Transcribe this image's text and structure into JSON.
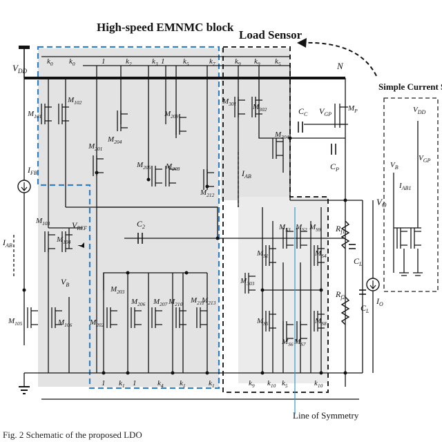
{
  "titles": {
    "emnmc_block": "High-speed EMNMC block",
    "load_sensor": "Load Sensor",
    "simple_current_sensor": "Simple Current Sensor",
    "line_of_symmetry": "Line of Symmetry",
    "caption": "Fig. 2 Schematic of the proposed LDO"
  },
  "nodes": {
    "vdd": "V",
    "vdd_sub": "DD",
    "n": "N",
    "vo": "V",
    "vo_sub": "O",
    "io": "I",
    "io_sub": "O",
    "vb": "V",
    "vb_sub": "B"
  },
  "top_k_labels": [
    "k",
    "k",
    "1",
    "k",
    "k",
    "1",
    "k",
    "k",
    "k",
    "k",
    "k"
  ],
  "top_k_subs": [
    "0",
    "0",
    "",
    "2",
    "3",
    "",
    "5",
    "7",
    "9",
    "9",
    "5"
  ],
  "bottom_k_labels": [
    "1",
    "k",
    "1",
    "k",
    "k",
    "k",
    "k",
    "k",
    "k",
    "k"
  ],
  "bottom_k_subs": [
    "",
    "1",
    "",
    "4",
    "1",
    "1",
    "9",
    "10",
    "5",
    "10"
  ],
  "transistors": [
    "M101",
    "M102",
    "M103",
    "M104",
    "M105",
    "M106",
    "M201",
    "M202",
    "M203",
    "M204",
    "M205",
    "M206",
    "M207",
    "M208",
    "M209",
    "M210",
    "M211",
    "M212",
    "M213",
    "M301",
    "M302",
    "M303",
    "M304",
    "MS1",
    "MS2",
    "MS3",
    "MS4",
    "MS5",
    "MS6",
    "MS7",
    "MS8",
    "MS9",
    "MP"
  ],
  "components": {
    "cc": "C",
    "cc_sub": "C",
    "cp": "C",
    "cp_sub": "P",
    "c2": "C",
    "c2_sub": "2",
    "cl": "C",
    "cl_sub": "L",
    "cl1": "C",
    "cl1_sub": "L",
    "rf1": "R",
    "rf1_sub": "f1",
    "rf2": "R",
    "rf2_sub": "f2",
    "ifb": "I",
    "ifb_sub": "FB",
    "iab": "I",
    "iab_sub": "AB",
    "iab2": "I",
    "iab2_sub": "AB",
    "iab1": "I",
    "iab1_sub": "AB1",
    "vref": "V",
    "vref_sub": "REF",
    "vgp": "V",
    "vgp_sub": "GP",
    "vgp2": "V",
    "vgp2_sub": "GP",
    "vdd2": "V",
    "vdd2_sub": "DD",
    "vb2": "V",
    "vb2_sub": "B"
  },
  "colors": {
    "emnmc_border": "#2f7fc1",
    "shade": "#e3e3e3",
    "load_border": "#222222",
    "symmetry_line": "#3399cc"
  }
}
